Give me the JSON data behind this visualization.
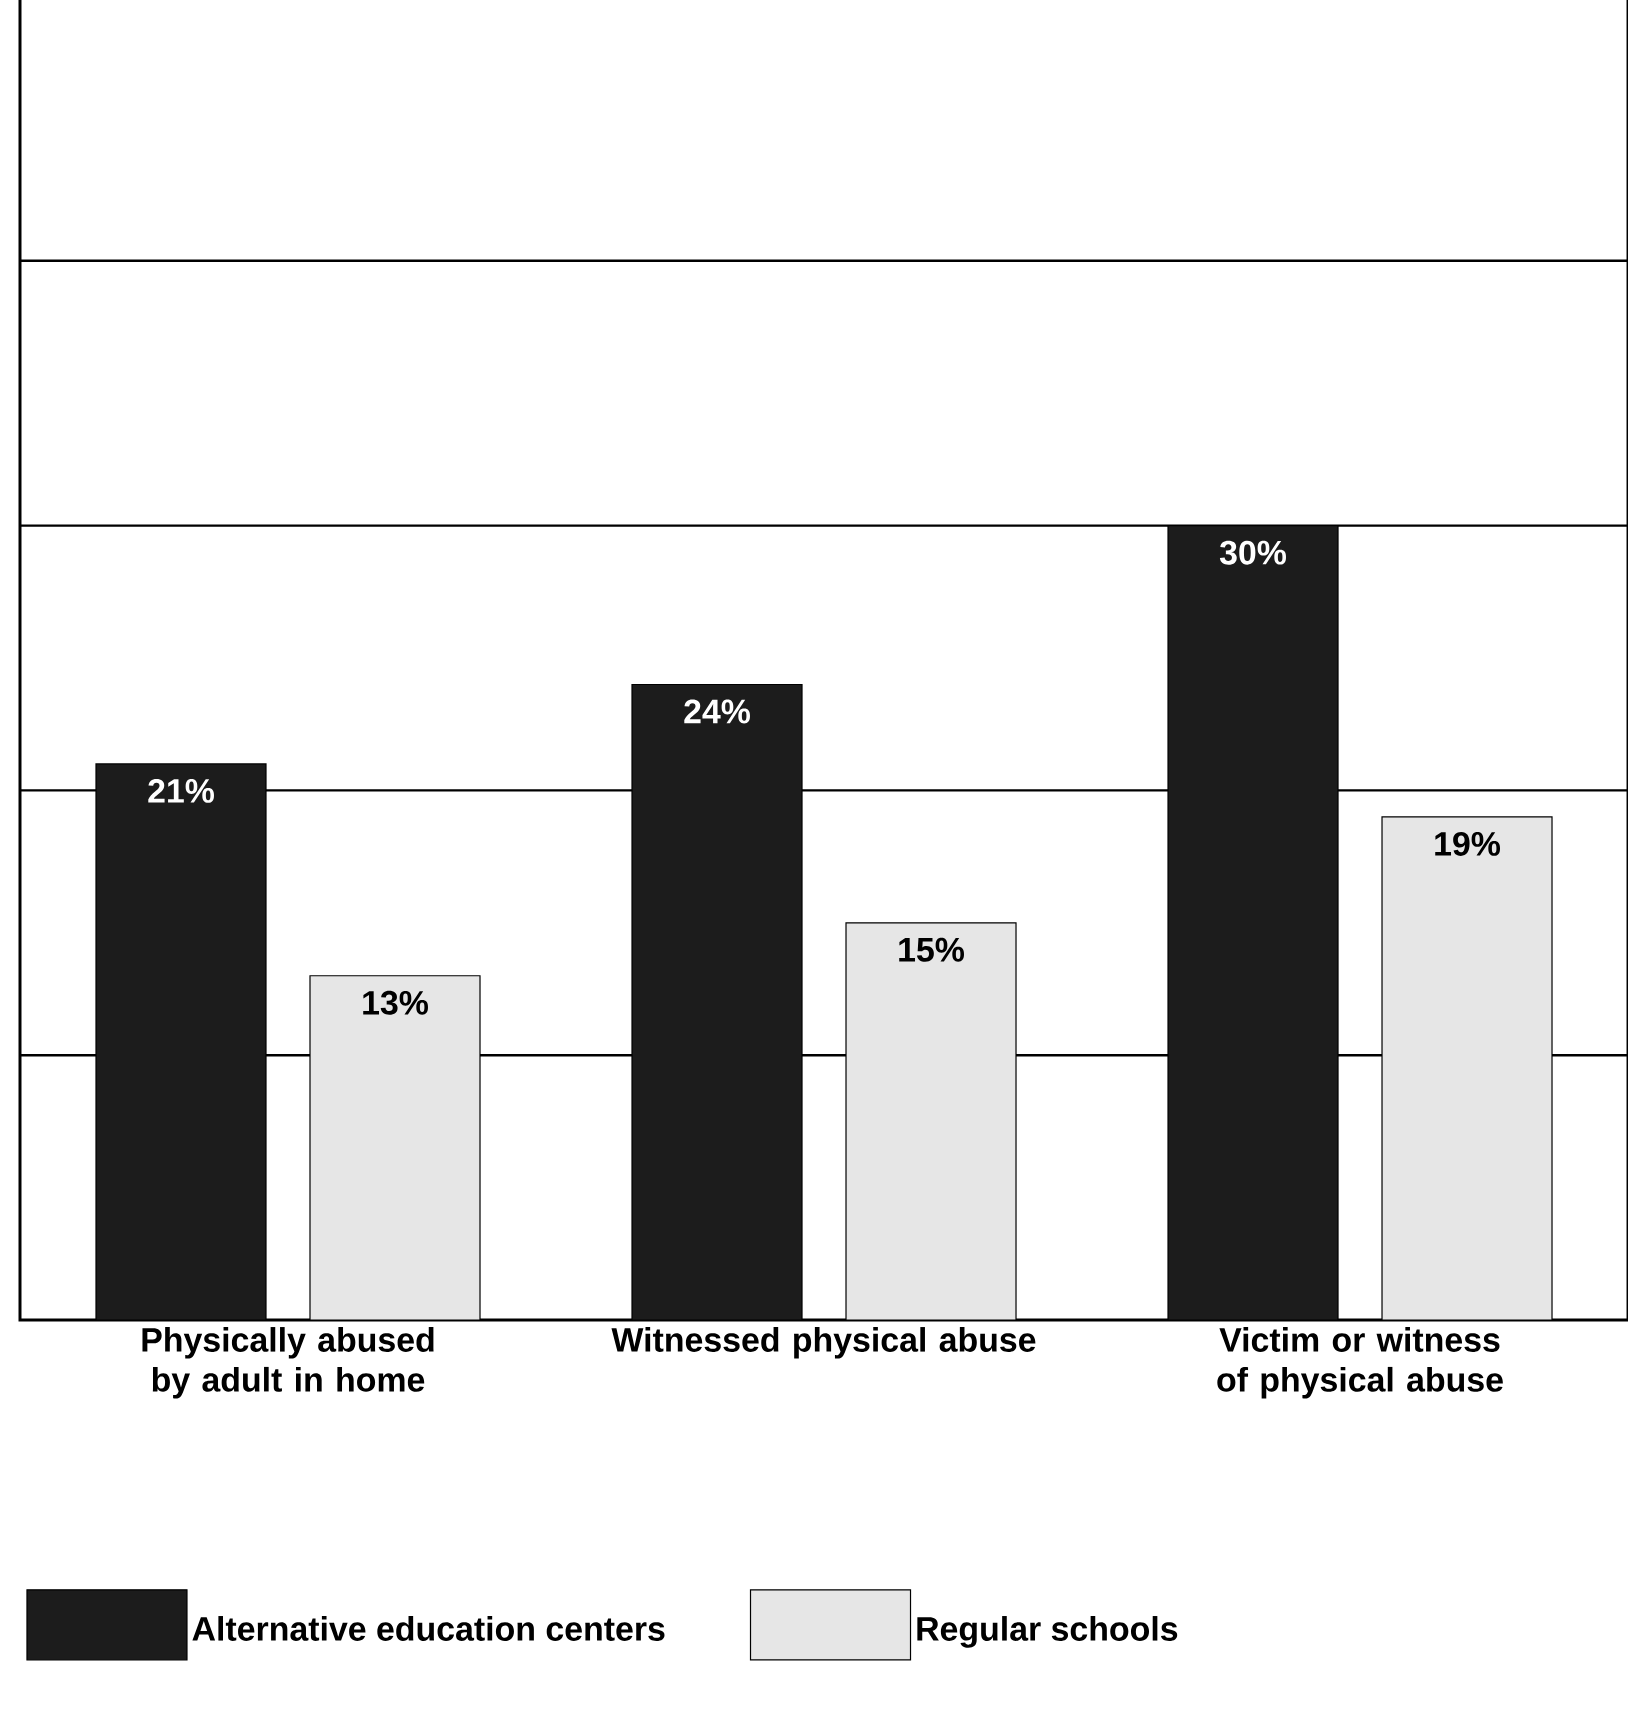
{
  "chart_data": {
    "type": "bar",
    "categories": [
      "Physically abused by adult in home",
      "Witnessed physical abuse",
      "Victim or witness of physical abuse"
    ],
    "series": [
      {
        "name": "Alternative education centers",
        "color": "#1c1c1c",
        "values": [
          21,
          24,
          30
        ],
        "value_labels": [
          "21%",
          "24%",
          "30%"
        ]
      },
      {
        "name": "Regular schools",
        "color": "#e6e6e6",
        "values": [
          13,
          15,
          19
        ],
        "value_labels": [
          "13%",
          "15%",
          "19%"
        ]
      }
    ],
    "ylim": [
      0,
      50
    ],
    "yticks": [
      {
        "value": 10,
        "label": null
      },
      {
        "value": 20,
        "label": null
      },
      {
        "value": 30,
        "label": null
      },
      {
        "value": 40,
        "label": null
      },
      {
        "value": 50,
        "label": null
      }
    ],
    "grid": "y",
    "tick_labels": "x",
    "legend": "bottom"
  }
}
